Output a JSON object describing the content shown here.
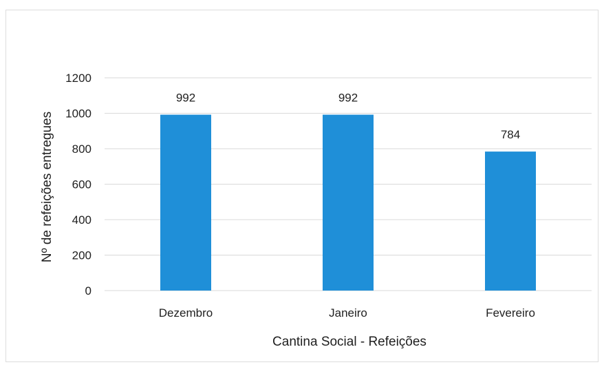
{
  "chart_data": {
    "type": "bar",
    "title": "",
    "xlabel": "Cantina Social - Refeições",
    "ylabel": "Nº de refeições entregues",
    "categories": [
      "Dezembro",
      "Janeiro",
      "Fevereiro"
    ],
    "values": [
      992,
      992,
      784
    ],
    "data_labels": [
      "992",
      "992",
      "784"
    ],
    "ylim": [
      0,
      1200
    ],
    "yticks": [
      0,
      200,
      400,
      600,
      800,
      1000,
      1200
    ],
    "ytick_labels": [
      "0",
      "200",
      "400",
      "600",
      "800",
      "1000",
      "1200"
    ],
    "grid": true,
    "legend": "none",
    "colors": {
      "bar": "#1f8fd8",
      "grid": "#d9d9d9"
    }
  }
}
